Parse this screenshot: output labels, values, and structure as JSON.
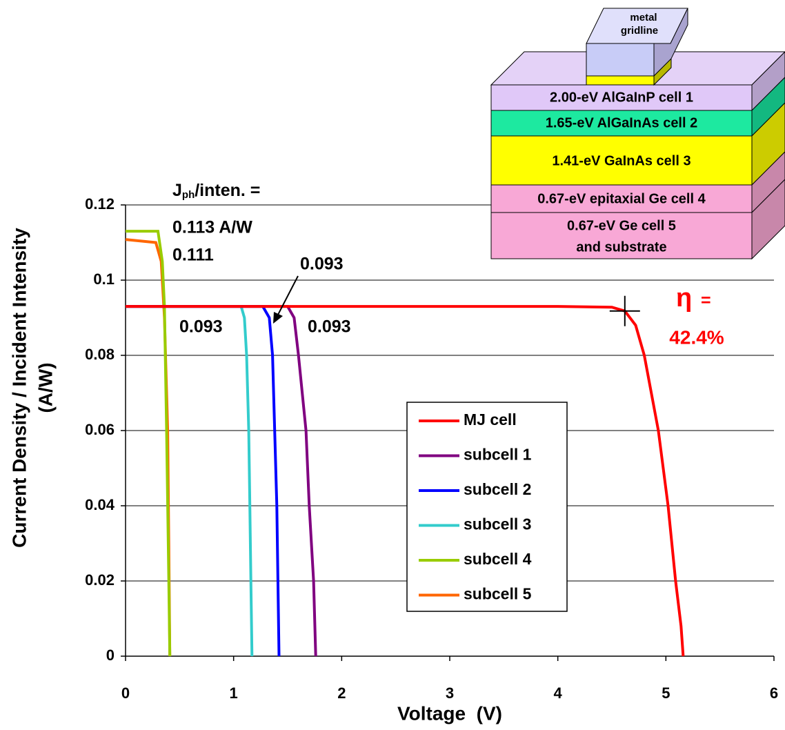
{
  "chart_data": {
    "type": "line",
    "x_label": "Voltage  (V)",
    "y_label": [
      "Current Density / Incident Intensity",
      "(A/W)"
    ],
    "xlim": [
      0,
      6
    ],
    "xticks": [
      0,
      1,
      2,
      3,
      4,
      5,
      6
    ],
    "ylim": [
      0,
      0.12
    ],
    "yticks": [
      0,
      0.02,
      0.04,
      0.06,
      0.08,
      0.1,
      0.12
    ],
    "grid": true,
    "legend": "center",
    "series": [
      {
        "name": "MJ cell",
        "color": "#ff0000",
        "x": [
          0,
          1,
          2,
          3,
          4,
          4.5,
          4.62,
          4.72,
          4.8,
          4.93,
          5.02,
          5.09,
          5.14,
          5.16
        ],
        "values": [
          0.093,
          0.093,
          0.093,
          0.093,
          0.093,
          0.0928,
          0.0918,
          0.088,
          0.08,
          0.06,
          0.04,
          0.02,
          0.008,
          0
        ]
      },
      {
        "name": "subcell 1",
        "color": "#800080",
        "x": [
          0,
          1,
          1.5,
          1.56,
          1.6,
          1.67,
          1.7,
          1.74,
          1.76
        ],
        "values": [
          0.093,
          0.093,
          0.093,
          0.09,
          0.08,
          0.06,
          0.04,
          0.02,
          0
        ]
      },
      {
        "name": "subcell 2",
        "color": "#0000ff",
        "x": [
          0,
          1,
          1.27,
          1.33,
          1.36,
          1.38,
          1.4,
          1.41,
          1.42
        ],
        "values": [
          0.093,
          0.093,
          0.093,
          0.09,
          0.08,
          0.06,
          0.04,
          0.02,
          0
        ]
      },
      {
        "name": "subcell 3",
        "color": "#33cccc",
        "x": [
          0,
          0.5,
          1.07,
          1.1,
          1.12,
          1.14,
          1.15,
          1.16,
          1.17
        ],
        "values": [
          0.093,
          0.093,
          0.093,
          0.09,
          0.08,
          0.06,
          0.04,
          0.02,
          0
        ]
      },
      {
        "name": "subcell 4",
        "color": "#99cc00",
        "x": [
          0,
          0.3,
          0.34,
          0.36,
          0.38,
          0.39,
          0.4,
          0.41
        ],
        "values": [
          0.113,
          0.113,
          0.105,
          0.093,
          0.06,
          0.04,
          0.02,
          0
        ]
      },
      {
        "name": "subcell 5",
        "color": "#ff6600",
        "x": [
          0,
          0.28,
          0.33,
          0.36,
          0.39,
          0.4,
          0.41
        ],
        "values": [
          0.1108,
          0.11,
          0.105,
          0.09,
          0.06,
          0.03,
          0
        ]
      }
    ],
    "max_power_point": {
      "x": 4.62,
      "y": 0.0918
    },
    "jph_label": {
      "main": "J",
      "sub": "ph",
      "rest": "/inten. ="
    },
    "annotations": [
      "0.113 A/W",
      "0.111",
      "0.093",
      "0.093",
      "0.093"
    ],
    "efficiency_symbol": "η",
    "efficiency_equals": "=",
    "efficiency": "42.4%"
  },
  "diagram": {
    "gridline_label": [
      "metal",
      "gridline"
    ],
    "layers": [
      "2.00-eV AlGaInP cell 1",
      "1.65-eV AlGaInAs cell 2",
      "1.41-eV GaInAs cell 3",
      "0.67-eV epitaxial Ge cell 4",
      "0.67-eV Ge cell 5",
      "and substrate"
    ]
  }
}
